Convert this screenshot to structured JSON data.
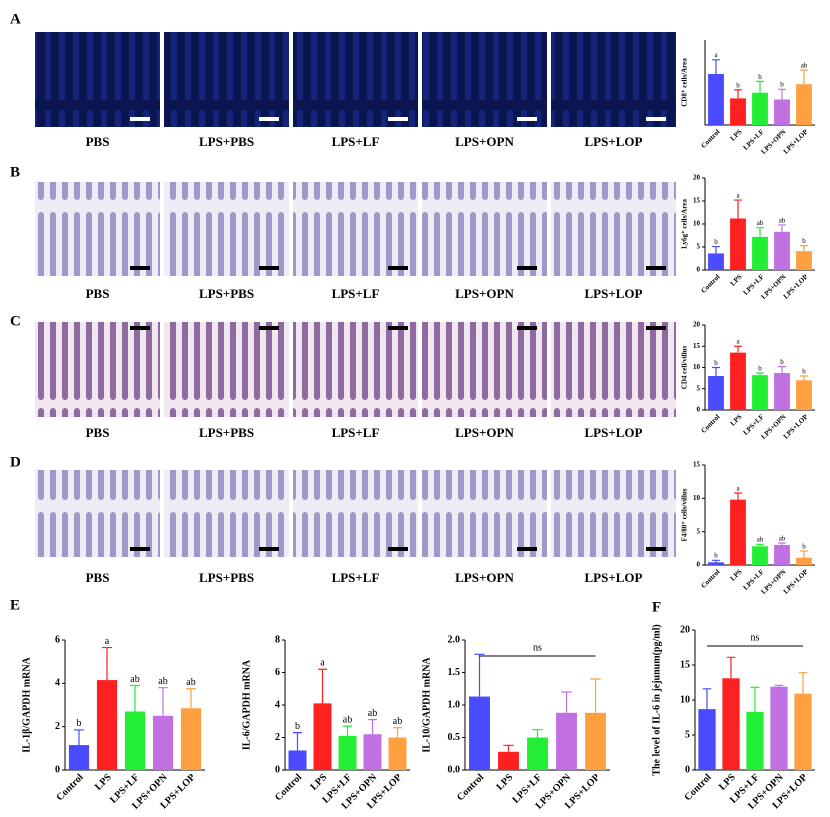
{
  "panels": [
    {
      "label": "A",
      "captions": [
        "PBS",
        "LPS+PBS",
        "LPS+LF",
        "LPS+OPN",
        "LPS+LOP"
      ]
    },
    {
      "label": "B",
      "captions": [
        "PBS",
        "LPS+PBS",
        "LPS+LF",
        "LPS+OPN",
        "LPS+LOP"
      ]
    },
    {
      "label": "C",
      "captions": [
        "PBS",
        "LPS+PBS",
        "LPS+LF",
        "LPS+OPN",
        "LPS+LOP"
      ]
    },
    {
      "label": "D",
      "captions": [
        "PBS",
        "LPS+PBS",
        "LPS+LF",
        "LPS+OPN",
        "LPS+LOP"
      ]
    },
    {
      "label": "E"
    },
    {
      "label": "F"
    }
  ],
  "chart_data": [
    {
      "type": "bar",
      "ylabel": "CD8⁺ cells/Area",
      "categories": [
        "Control",
        "LPS",
        "LPS+LF",
        "LPS+OPN",
        "LPS+LOP"
      ],
      "colors": [
        "#4a4aff",
        "#ff2020",
        "#22ee33",
        "#c070e0",
        "#ffa040"
      ],
      "values": [
        90,
        47,
        57,
        45,
        72
      ],
      "errors": [
        25,
        15,
        20,
        18,
        25
      ],
      "letters": [
        "a",
        "b",
        "b",
        "b",
        "ab"
      ],
      "ylim": [
        0,
        150
      ]
    },
    {
      "type": "bar",
      "ylabel": "Ly6g⁺ cells/Area",
      "categories": [
        "Control",
        "LPS",
        "LPS+LF",
        "LPS+OPN",
        "LPS+LOP"
      ],
      "colors": [
        "#4a4aff",
        "#ff2020",
        "#22ee33",
        "#c070e0",
        "#ffa040"
      ],
      "values": [
        3.6,
        11.2,
        7.2,
        8.3,
        4.1
      ],
      "errors": [
        1.5,
        4,
        2,
        1.5,
        1.2
      ],
      "letters": [
        "b",
        "a",
        "ab",
        "ab",
        "b"
      ],
      "ylim": [
        0,
        20
      ],
      "yticks": [
        0,
        5,
        10,
        15,
        20
      ]
    },
    {
      "type": "bar",
      "ylabel": "CD4 cell/villus",
      "categories": [
        "Control",
        "LPS",
        "LPS+LF",
        "LPS+OPN",
        "LPS+LOP"
      ],
      "colors": [
        "#4a4aff",
        "#ff2020",
        "#22ee33",
        "#c070e0",
        "#ffa040"
      ],
      "values": [
        8,
        13.5,
        8.2,
        8.7,
        7
      ],
      "errors": [
        2,
        1.5,
        0.5,
        1.5,
        1
      ],
      "letters": [
        "b",
        "a",
        "b",
        "b",
        "b"
      ],
      "ylim": [
        0,
        20
      ],
      "yticks": [
        0,
        5,
        10,
        15,
        20
      ]
    },
    {
      "type": "bar",
      "ylabel": "F4/80⁺ cells/villus",
      "categories": [
        "Control",
        "LPS",
        "LPS+LF",
        "LPS+OPN",
        "LPS+LOP"
      ],
      "colors": [
        "#4a4aff",
        "#ff2020",
        "#22ee33",
        "#c070e0",
        "#ffa040"
      ],
      "values": [
        0.4,
        9.8,
        2.8,
        3,
        1.1
      ],
      "errors": [
        0.3,
        1,
        0.3,
        0.3,
        1
      ],
      "letters": [
        "b",
        "a",
        "ab",
        "ab",
        "b"
      ],
      "ylim": [
        0,
        15
      ],
      "yticks": [
        0,
        5,
        10,
        15
      ]
    },
    {
      "type": "bar",
      "ylabel": "IL-1β/GAPDH mRNA",
      "categories": [
        "Control",
        "LPS",
        "LPS+LF",
        "LPS+OPN",
        "LPS+LOP"
      ],
      "colors": [
        "#4a4aff",
        "#ff2020",
        "#22ee33",
        "#c070e0",
        "#ffa040"
      ],
      "values": [
        1.15,
        4.15,
        2.7,
        2.5,
        2.85
      ],
      "errors": [
        0.7,
        1.5,
        1.2,
        1.3,
        0.9
      ],
      "letters": [
        "b",
        "a",
        "ab",
        "ab",
        "ab"
      ],
      "ylim": [
        0,
        6
      ],
      "yticks": [
        0,
        2,
        4,
        6
      ]
    },
    {
      "type": "bar",
      "ylabel": "IL-6/GAPDH mRNA",
      "categories": [
        "Control",
        "LPS",
        "LPS+LF",
        "LPS+OPN",
        "LPS+LOP"
      ],
      "colors": [
        "#4a4aff",
        "#ff2020",
        "#22ee33",
        "#c070e0",
        "#ffa040"
      ],
      "values": [
        1.2,
        4.1,
        2.1,
        2.2,
        2.0
      ],
      "errors": [
        1.1,
        2.1,
        0.6,
        0.9,
        0.6
      ],
      "letters": [
        "b",
        "a",
        "ab",
        "ab",
        "ab"
      ],
      "ylim": [
        0,
        8
      ],
      "yticks": [
        0,
        2,
        4,
        6,
        8
      ]
    },
    {
      "type": "bar",
      "ylabel": "IL-10/GAPDH mRNA",
      "categories": [
        "Control",
        "LPS",
        "LPS+LF",
        "LPS+OPN",
        "LPS+LOP"
      ],
      "colors": [
        "#4a4aff",
        "#ff2020",
        "#22ee33",
        "#c070e0",
        "#ffa040"
      ],
      "values": [
        1.13,
        0.28,
        0.5,
        0.88,
        0.88
      ],
      "errors": [
        0.65,
        0.1,
        0.12,
        0.32,
        0.52
      ],
      "annotation": "ns",
      "ylim": [
        0,
        2
      ],
      "yticks": [
        {
          "value": 0,
          "label": "0.0"
        },
        0.5,
        {
          "value": 1,
          "label": "1.0"
        },
        1.5,
        {
          "value": 2,
          "label": "2.0"
        }
      ]
    },
    {
      "type": "bar",
      "ylabel": "The level of IL-6 in jejunum(pg/ml)",
      "categories": [
        "Control",
        "LPS",
        "LPS+LF",
        "LPS+OPN",
        "LPS+LOP"
      ],
      "colors": [
        "#4a4aff",
        "#ff2020",
        "#22ee33",
        "#c070e0",
        "#ffa040"
      ],
      "values": [
        8.7,
        13.1,
        8.3,
        11.9,
        10.9
      ],
      "errors": [
        2.9,
        3,
        3.5,
        0.2,
        3
      ],
      "annotation": "ns",
      "ylim": [
        0,
        20
      ],
      "yticks": [
        0,
        5,
        10,
        15,
        20
      ]
    }
  ]
}
